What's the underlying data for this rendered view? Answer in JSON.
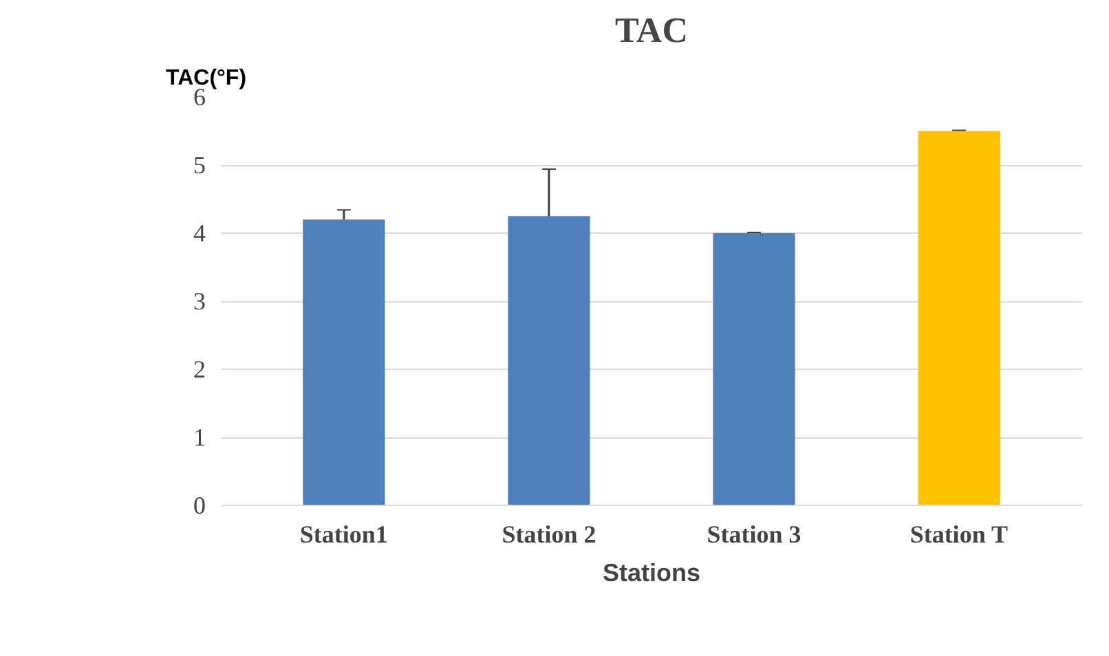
{
  "chart_data": {
    "type": "bar",
    "title": "TAC",
    "xlabel": "Stations",
    "ylabel": "TAC(°F)",
    "categories": [
      "Station1",
      "Station 2",
      "Station 3",
      "Station T"
    ],
    "values": [
      4.2,
      4.25,
      4.0,
      5.5
    ],
    "colors": [
      "#4f81bd",
      "#4f81bd",
      "#4f81bd",
      "#ffc000"
    ],
    "errors": [
      0.14,
      0.69,
      0.01,
      0.01
    ],
    "ylim": [
      0,
      6
    ],
    "yticks": [
      0,
      1,
      2,
      3,
      4,
      5,
      6
    ],
    "grid": "y"
  }
}
